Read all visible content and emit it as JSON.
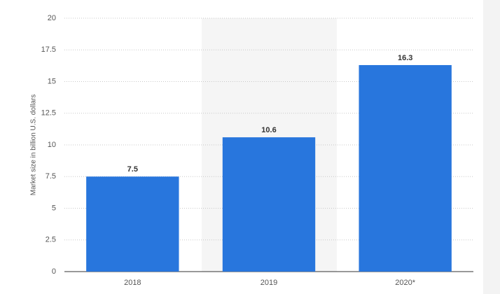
{
  "chart_data": {
    "type": "bar",
    "y_label": "Market size in billion U.S. dollars",
    "categories": [
      "2018",
      "2019",
      "2020*"
    ],
    "values": [
      7.5,
      10.6,
      16.3
    ],
    "color": "#2876dd",
    "ylim": [
      0,
      20
    ],
    "yticks": [
      0,
      2.5,
      5,
      7.5,
      10,
      12.5,
      15,
      17.5,
      20
    ],
    "grid": true
  }
}
